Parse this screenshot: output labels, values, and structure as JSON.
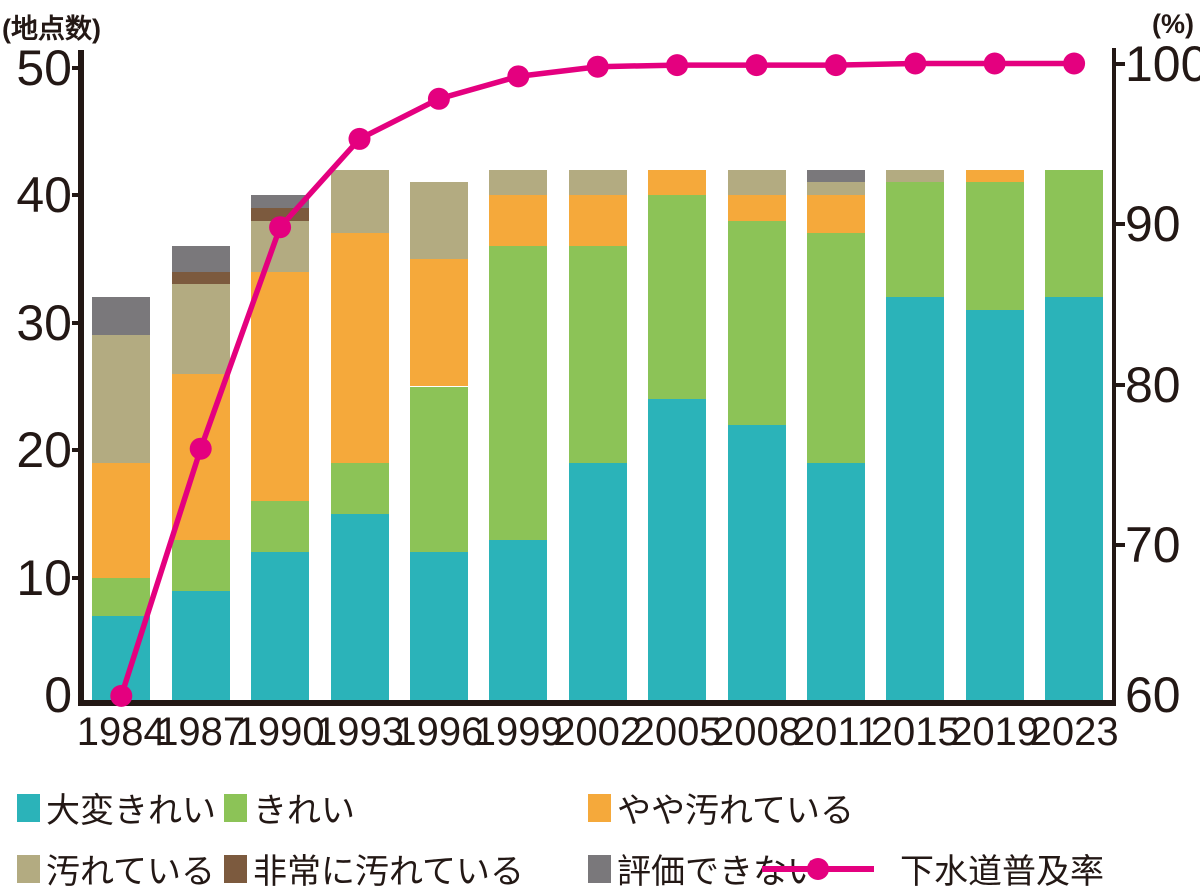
{
  "chart_data": {
    "type": "stacked-bar+line",
    "categories": [
      "1984",
      "1987",
      "1990",
      "1993",
      "1996",
      "1999",
      "2002",
      "2005",
      "2008",
      "2011",
      "2015",
      "2019",
      "2023"
    ],
    "left_axis": {
      "label": "(地点数)",
      "ticks": [
        0,
        10,
        20,
        30,
        40,
        50
      ],
      "range": [
        0,
        50
      ]
    },
    "right_axis": {
      "label": "(%)",
      "ticks": [
        60,
        70,
        80,
        90,
        100
      ],
      "range": [
        60,
        100
      ]
    },
    "grid": "off",
    "legend_position": "bottom",
    "bar_series": [
      {
        "name": "大変きれい",
        "color": "#2BB3B9",
        "values": [
          7,
          9,
          12,
          15,
          12,
          13,
          19,
          24,
          22,
          19,
          32,
          31,
          32
        ]
      },
      {
        "name": "きれい",
        "color": "#8CC357",
        "values": [
          3,
          4,
          4,
          4,
          13,
          23,
          17,
          16,
          16,
          18,
          9,
          10,
          10
        ]
      },
      {
        "name": "やや汚れている",
        "color": "#F5A93B",
        "values": [
          9,
          13,
          18,
          18,
          10,
          4,
          4,
          2,
          2,
          3,
          0,
          1,
          0
        ]
      },
      {
        "name": "汚れている",
        "color": "#B3AB81",
        "values": [
          10,
          7,
          4,
          5,
          6,
          2,
          2,
          0,
          2,
          1,
          1,
          0,
          0
        ]
      },
      {
        "name": "非常に汚れている",
        "color": "#7C5A3E",
        "values": [
          0,
          1,
          1,
          0,
          0,
          0,
          0,
          0,
          0,
          0,
          0,
          0,
          0
        ]
      },
      {
        "name": "評価できない",
        "color": "#7A787B",
        "values": [
          3,
          2,
          1,
          0,
          0,
          0,
          0,
          0,
          0,
          1,
          0,
          0,
          0
        ]
      }
    ],
    "line_series": {
      "name": "下水道普及率",
      "color": "#E4007F",
      "values": [
        60.6,
        76.0,
        89.8,
        95.3,
        97.8,
        99.2,
        99.8,
        99.9,
        99.9,
        99.9,
        100,
        100,
        100
      ]
    }
  }
}
